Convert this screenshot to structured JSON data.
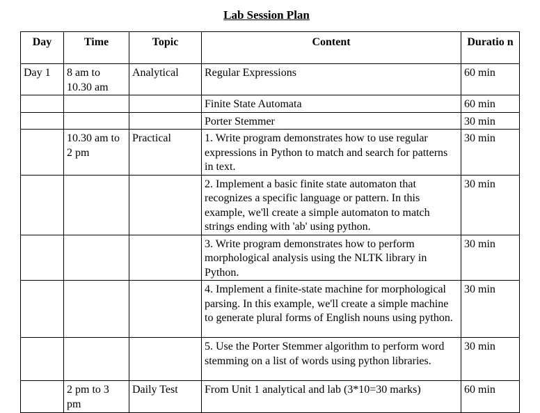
{
  "title": "Lab Session Plan",
  "headers": {
    "day": "Day",
    "time": "Time",
    "topic": "Topic",
    "content": "Content",
    "duration": "Duratio n"
  },
  "rows": [
    {
      "day": "Day 1",
      "time": "8 am to 10.30 am",
      "topic": "Analytical",
      "content": "Regular Expressions",
      "duration": "60 min"
    },
    {
      "day": "",
      "time": "",
      "topic": "",
      "content": "Finite State Automata",
      "duration": "60 min"
    },
    {
      "day": "",
      "time": "",
      "topic": "",
      "content": "Porter Stemmer",
      "duration": "30 min"
    },
    {
      "day": "",
      "time": "10.30 am to 2 pm",
      "topic": "Practical",
      "content": "1. Write program demonstrates how to use regular expressions in Python to match and search for patterns in text.",
      "duration": "30 min"
    },
    {
      "day": "",
      "time": "",
      "topic": "",
      "content": "2. Implement a basic finite state automaton that recognizes a specific language or pattern. In this example, we'll create a simple automaton to match strings ending with 'ab' using python.",
      "duration": "30 min"
    },
    {
      "day": "",
      "time": "",
      "topic": "",
      "content": "3. Write program demonstrates how to perform morphological analysis using the NLTK library in Python.",
      "duration": "30 min"
    },
    {
      "day": "",
      "time": "",
      "topic": "",
      "content": "4. Implement a finite-state machine for morphological parsing. In this example, we'll create a simple machine to generate plural forms of English nouns using python.",
      "duration": "30 min"
    },
    {
      "day": "",
      "time": "",
      "topic": "",
      "content": "5. Use the Porter Stemmer algorithm to perform word stemming on a list of words using python libraries.",
      "duration": "30 min"
    },
    {
      "day": "",
      "time": "2 pm to 3 pm",
      "topic": "Daily Test",
      "content": "From Unit 1 analytical and lab (3*10=30 marks)",
      "duration": "60 min"
    }
  ]
}
